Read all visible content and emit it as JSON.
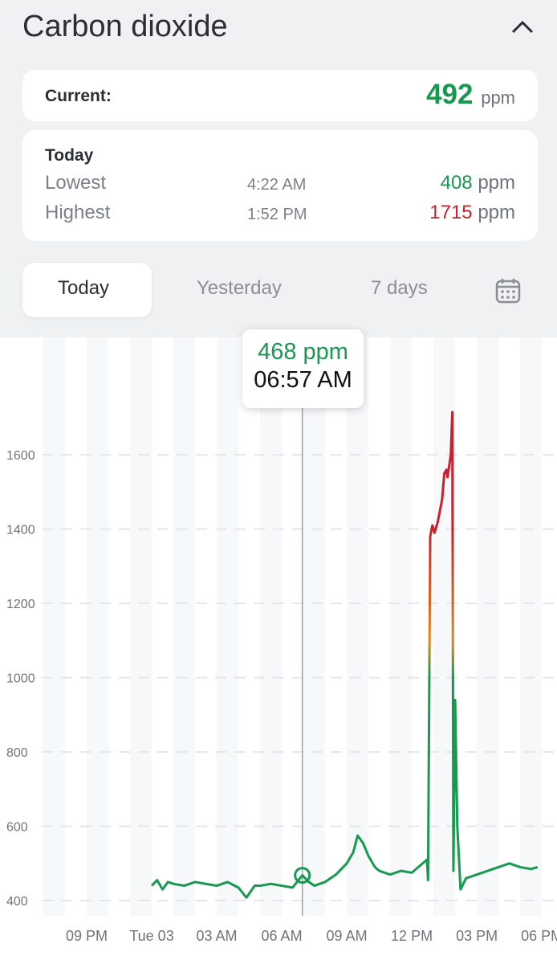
{
  "header": {
    "title": "Carbon dioxide"
  },
  "current": {
    "label": "Current:",
    "value": 492,
    "unit": "ppm"
  },
  "today": {
    "title": "Today",
    "rows": [
      {
        "label": "Lowest",
        "time": "4:22 AM",
        "value": 408,
        "unit": "ppm",
        "color": "#17994f"
      },
      {
        "label": "Highest",
        "time": "1:52 PM",
        "value": 1715,
        "unit": "ppm",
        "color": "#c8202f"
      }
    ]
  },
  "tabs": [
    "Today",
    "Yesterday",
    "7 days"
  ],
  "chart_data": {
    "type": "line",
    "x": [
      0,
      0.25,
      0.5,
      0.75,
      1,
      1.5,
      2,
      2.5,
      3,
      3.5,
      4,
      4.37,
      4.75,
      5,
      5.5,
      6,
      6.5,
      6.95,
      7.25,
      7.5,
      8,
      8.5,
      9,
      9.3,
      9.5,
      9.75,
      10,
      10.3,
      10.5,
      11,
      11.5,
      12,
      12.5,
      12.7,
      12.75,
      12.85,
      12.95,
      13.05,
      13.2,
      13.4,
      13.5,
      13.6,
      13.65,
      13.8,
      13.87,
      13.92,
      14.0,
      14.1,
      14.25,
      14.5,
      15,
      15.5,
      16,
      16.5,
      17,
      17.5,
      17.8
    ],
    "series": [
      {
        "name": "CO2",
        "values": [
          440,
          455,
          430,
          450,
          445,
          440,
          450,
          445,
          440,
          450,
          435,
          408,
          440,
          440,
          445,
          440,
          435,
          468,
          450,
          440,
          450,
          470,
          500,
          530,
          575,
          555,
          520,
          490,
          480,
          470,
          480,
          475,
          500,
          510,
          455,
          1380,
          1410,
          1390,
          1420,
          1480,
          1550,
          1560,
          1540,
          1600,
          1715,
          480,
          940,
          600,
          430,
          460,
          470,
          480,
          490,
          500,
          490,
          485,
          490
        ]
      }
    ],
    "levels": [
      {
        "value": 1000,
        "color": "#17994f"
      },
      {
        "value": 1100,
        "color": "#e08a1a"
      },
      {
        "value": 1400,
        "color": "#c8202f"
      }
    ],
    "xlim": [
      -7,
      18.7
    ],
    "ylim": [
      359,
      1916
    ],
    "yticks": [
      400,
      600,
      800,
      1000,
      1200,
      1400,
      1600
    ],
    "xticks": [
      {
        "value": -3,
        "label": "09 PM"
      },
      {
        "value": 0,
        "label": "Tue 03"
      },
      {
        "value": 3,
        "label": "03 AM"
      },
      {
        "value": 6,
        "label": "06 AM"
      },
      {
        "value": 9,
        "label": "09 AM"
      },
      {
        "value": 12,
        "label": "12 PM"
      },
      {
        "value": 15,
        "label": "03 PM"
      },
      {
        "value": 18,
        "label": "06 PM"
      }
    ],
    "grid": true,
    "tooltip": {
      "x": 6.95,
      "value": 468,
      "unit": "ppm",
      "time": "06:57 AM"
    }
  }
}
